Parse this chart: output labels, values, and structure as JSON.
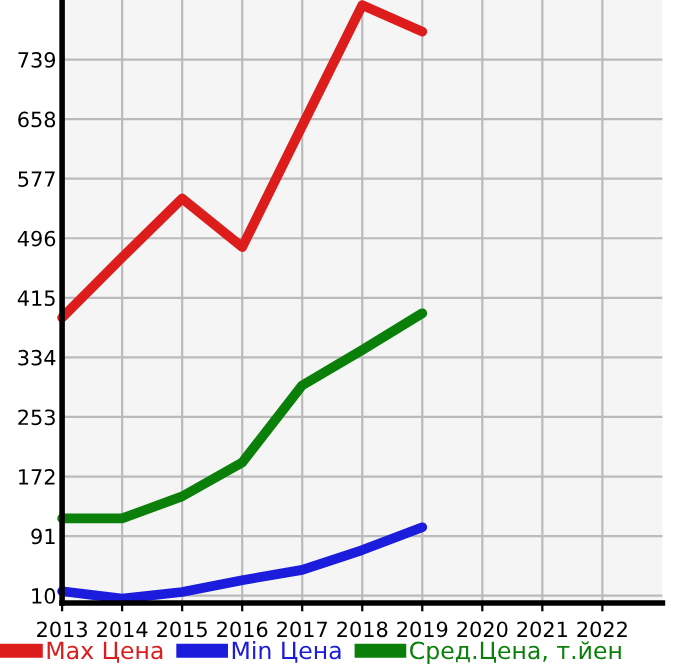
{
  "chart_data": {
    "type": "line",
    "x": [
      2013,
      2014,
      2015,
      2016,
      2017,
      2018,
      2019
    ],
    "series": [
      {
        "name": "Max Цена",
        "color": "#dd1c1c",
        "values": [
          388,
          470,
          550,
          484,
          649,
          813,
          777
        ]
      },
      {
        "name": "Min Цена",
        "color": "#1c1cdd",
        "values": [
          16,
          6,
          15,
          31,
          45,
          72,
          103
        ]
      },
      {
        "name": "Сред.Цена, т.йен",
        "color": "#0a800a",
        "values": [
          115,
          115,
          145,
          191,
          296,
          344,
          394
        ]
      }
    ],
    "xlim": [
      2013,
      2023
    ],
    "xticks": [
      2013,
      2014,
      2015,
      2016,
      2017,
      2018,
      2019,
      2020,
      2021,
      2022
    ],
    "ylim": [
      0,
      820
    ],
    "yticks": [
      10,
      91,
      172,
      253,
      334,
      415,
      496,
      577,
      658,
      739
    ],
    "grid": true,
    "legend": "bottom",
    "marker": "none",
    "line_style": "solid"
  }
}
